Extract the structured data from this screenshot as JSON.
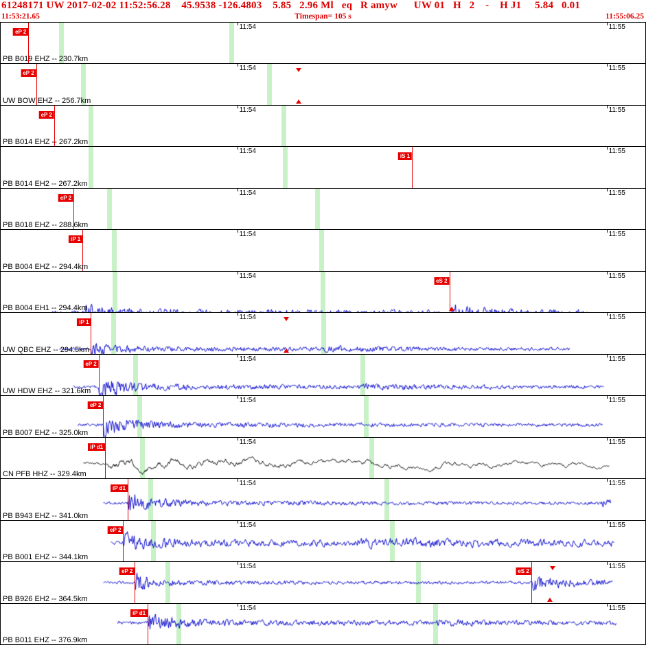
{
  "header": {
    "event_info": "61248171 UW 2017-02-02 11:52:56.28    45.9538 -126.4803    5.85   2.96 Ml   eq   R amyw      UW 01   H   2    -    H J1     5.84   0.01",
    "window_start": "11:53:21.65",
    "timespan_label": "Timespan= 105 s",
    "window_end": "11:55:06.25"
  },
  "colors": {
    "header_red": "#dd0000",
    "marker_red": "#e60000",
    "band_green": "#9ae69a",
    "trace_blue": "#0000cc",
    "trace_black": "#000000"
  },
  "time_axis": {
    "ticks": [
      {
        "label": "11:54",
        "x": 0.367
      },
      {
        "label": "11:55",
        "x": 0.94
      }
    ]
  },
  "traces": [
    {
      "station": "PB B019 EHZ -- 230.7km",
      "color": "#0000cc",
      "start": 0.0,
      "end": 0.818,
      "markers": [
        {
          "label": "eP 2",
          "x": 0.043
        }
      ],
      "bands": [
        0.094,
        0.358
      ],
      "triangles": [],
      "wave": {
        "seed": 101,
        "base": 9,
        "smooth": 0.55,
        "bursts": []
      }
    },
    {
      "station": "UW BOW EHZ -- 256.7km",
      "color": "#0000cc",
      "start": 0.03,
      "end": 0.855,
      "markers": [
        {
          "label": "eP 2",
          "x": 0.055
        }
      ],
      "bands": [
        0.128,
        0.416
      ],
      "triangles": [
        {
          "x": 0.462,
          "pos": "top"
        },
        {
          "x": 0.462,
          "pos": "bottom"
        }
      ],
      "wave": {
        "seed": 102,
        "base": 8.5,
        "smooth": 0.32,
        "bursts": [
          [
            0.055,
            4,
            0.25
          ]
        ]
      }
    },
    {
      "station": "PB B014 EHZ -- 267.2km",
      "color": "#0000cc",
      "start": 0.043,
      "end": 0.866,
      "markers": [
        {
          "label": "eP 2",
          "x": 0.083
        }
      ],
      "bands": [
        0.139,
        0.439
      ],
      "triangles": [],
      "wave": {
        "seed": 103,
        "base": 3.5,
        "smooth": 0.3,
        "bursts": [
          [
            0.083,
            11,
            0.03
          ],
          [
            0.083,
            4,
            0.35
          ],
          [
            0.439,
            2.5,
            0.12
          ]
        ]
      }
    },
    {
      "station": "PB B014 EH2 -- 267.2km",
      "color": "#0000cc",
      "start": 0.043,
      "end": 0.866,
      "markers": [
        {
          "label": "iS 1",
          "x": 0.638
        }
      ],
      "bands": [
        0.14,
        0.441
      ],
      "triangles": [],
      "wave": {
        "seed": 104,
        "base": 3.5,
        "smooth": 0.3,
        "bursts": [
          [
            0.085,
            13,
            0.03
          ],
          [
            0.085,
            4.5,
            0.35
          ],
          [
            0.441,
            3,
            0.1
          ],
          [
            0.638,
            2.5,
            0.1
          ]
        ]
      }
    },
    {
      "station": "PB B018 EHZ -- 288.6km",
      "color": "#0000cc",
      "start": 0.075,
      "end": 0.903,
      "markers": [
        {
          "label": "eP 2",
          "x": 0.113
        }
      ],
      "bands": [
        0.168,
        0.491
      ],
      "triangles": [],
      "wave": {
        "seed": 105,
        "base": 5,
        "smooth": 0.32,
        "bursts": [
          [
            0.113,
            13,
            0.04
          ],
          [
            0.113,
            5,
            0.4
          ]
        ]
      }
    },
    {
      "station": "PB B004 EHZ -- 294.4km",
      "color": "#0000cc",
      "start": 0.08,
      "end": 0.882,
      "markers": [
        {
          "label": "iP 1",
          "x": 0.127
        }
      ],
      "bands": [
        0.176,
        0.497
      ],
      "triangles": [],
      "wave": {
        "seed": 106,
        "base": 3,
        "smooth": 0.3,
        "bursts": [
          [
            0.127,
            13,
            0.025
          ],
          [
            0.127,
            4,
            0.3
          ],
          [
            0.497,
            2.5,
            0.12
          ]
        ]
      }
    },
    {
      "station": "PB B004 EH1 -- 294.4km",
      "color": "#0000cc",
      "start": 0.08,
      "end": 0.909,
      "markers": [
        {
          "label": "eS 2",
          "x": 0.696
        }
      ],
      "bands": [
        0.177,
        0.499
      ],
      "triangles": [
        {
          "x": 0.7,
          "pos": "bottom"
        }
      ],
      "wave": {
        "seed": 107,
        "base": 5,
        "smooth": 0.32,
        "bursts": [
          [
            0.13,
            8,
            0.03
          ],
          [
            0.13,
            4,
            0.3
          ],
          [
            0.696,
            8,
            0.05
          ],
          [
            0.696,
            3,
            0.2
          ]
        ]
      }
    },
    {
      "station": "UW QBC EHZ -- 294.5km",
      "color": "#0000cc",
      "start": 0.09,
      "end": 0.882,
      "markers": [
        {
          "label": "iP 1",
          "x": 0.14
        }
      ],
      "bands": [
        0.175,
        0.5
      ],
      "triangles": [
        {
          "x": 0.443,
          "pos": "top"
        },
        {
          "x": 0.443,
          "pos": "bottom"
        }
      ],
      "wave": {
        "seed": 108,
        "base": 2.5,
        "smooth": 0.3,
        "bursts": [
          [
            0.14,
            9,
            0.025
          ],
          [
            0.14,
            3,
            0.3
          ],
          [
            0.5,
            2.5,
            0.12
          ]
        ]
      }
    },
    {
      "station": "UW HDW EHZ -- 321.6km",
      "color": "#0000cc",
      "start": 0.112,
      "end": 0.935,
      "markers": [
        {
          "label": "eP 2",
          "x": 0.152
        }
      ],
      "bands": [
        0.209,
        0.561
      ],
      "triangles": [],
      "wave": {
        "seed": 109,
        "base": 2.5,
        "smooth": 0.3,
        "bursts": [
          [
            0.152,
            17,
            0.03
          ],
          [
            0.152,
            4,
            0.3
          ],
          [
            0.561,
            2.5,
            0.15
          ]
        ]
      }
    },
    {
      "station": "PB B007 EHZ -- 325.0km",
      "color": "#0000cc",
      "start": 0.119,
      "end": 0.933,
      "markers": [
        {
          "label": "eP 2",
          "x": 0.159
        }
      ],
      "bands": [
        0.215,
        0.567
      ],
      "triangles": [],
      "wave": {
        "seed": 110,
        "base": 2.5,
        "smooth": 0.3,
        "bursts": [
          [
            0.159,
            16,
            0.03
          ],
          [
            0.159,
            4,
            0.3
          ]
        ]
      }
    },
    {
      "station": "CN PFB HHZ -- 329.4km",
      "color": "#000000",
      "start": 0.128,
      "end": 0.944,
      "markers": [
        {
          "label": "iP d1",
          "x": 0.162
        }
      ],
      "bands": [
        0.219,
        0.575
      ],
      "triangles": [],
      "wave": {
        "seed": 111,
        "base": 5.5,
        "smooth": 0.95,
        "bursts": [
          [
            0.163,
            8,
            0.4
          ]
        ]
      }
    },
    {
      "station": "PB B943 EHZ -- 341.0km",
      "color": "#0000cc",
      "start": 0.159,
      "end": 0.946,
      "markers": [
        {
          "label": "iP d1",
          "x": 0.197
        }
      ],
      "bands": [
        0.232,
        0.599
      ],
      "triangles": [],
      "wave": {
        "seed": 112,
        "base": 2.5,
        "smooth": 0.3,
        "bursts": [
          [
            0.197,
            15,
            0.03
          ],
          [
            0.197,
            3.5,
            0.3
          ],
          [
            0.93,
            5,
            0.08
          ]
        ]
      }
    },
    {
      "station": "PB B001 EHZ -- 344.1km",
      "color": "#0000cc",
      "start": 0.17,
      "end": 0.951,
      "markers": [
        {
          "label": "eP 2",
          "x": 0.19
        }
      ],
      "bands": [
        0.236,
        0.607
      ],
      "triangles": [],
      "wave": {
        "seed": 113,
        "base": 4,
        "smooth": 0.5,
        "bursts": [
          [
            0.19,
            11,
            0.03
          ],
          [
            0.19,
            4,
            0.3
          ],
          [
            0.55,
            4,
            0.35
          ]
        ]
      }
    },
    {
      "station": "PB B926 EH2 -- 364.5km",
      "color": "#0000cc",
      "start": 0.159,
      "end": 0.949,
      "markers": [
        {
          "label": "eP 2",
          "x": 0.208
        },
        {
          "label": "eS 2",
          "x": 0.823
        }
      ],
      "bands": [
        0.259,
        0.647
      ],
      "triangles": [
        {
          "x": 0.856,
          "pos": "top"
        },
        {
          "x": 0.852,
          "pos": "bottom"
        }
      ],
      "wave": {
        "seed": 114,
        "base": 2.2,
        "smooth": 0.3,
        "bursts": [
          [
            0.208,
            13,
            0.025
          ],
          [
            0.208,
            3,
            0.25
          ],
          [
            0.825,
            14,
            0.03
          ],
          [
            0.825,
            4,
            0.2
          ]
        ]
      }
    },
    {
      "station": "PB B011 EHZ -- 376.9km",
      "color": "#0000cc",
      "start": 0.181,
      "end": 0.954,
      "markers": [
        {
          "label": "iP d1",
          "x": 0.228
        }
      ],
      "bands": [
        0.276,
        0.674
      ],
      "triangles": [],
      "wave": {
        "seed": 115,
        "base": 3,
        "smooth": 0.32,
        "bursts": [
          [
            0.228,
            12,
            0.03
          ],
          [
            0.228,
            4,
            0.3
          ],
          [
            0.675,
            2.5,
            0.12
          ]
        ]
      }
    }
  ]
}
